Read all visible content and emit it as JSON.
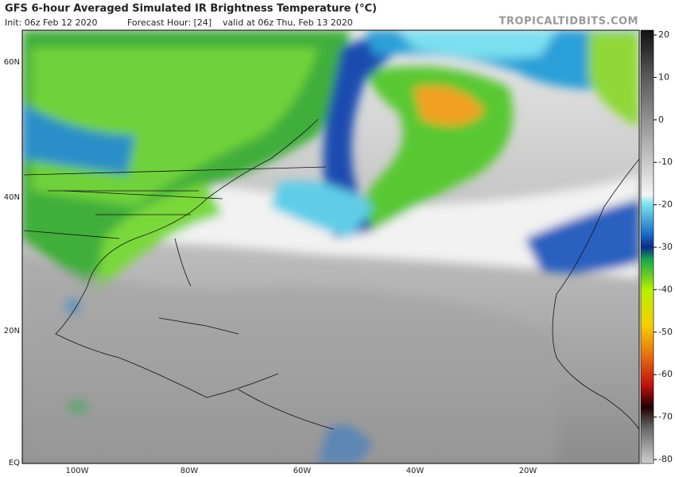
{
  "header": {
    "title": "GFS 6-hour Averaged Simulated IR Brightness Temperature (°C)",
    "init": "Init: 06z Feb 12 2020",
    "forecast": "Forecast Hour: [24]",
    "valid": "valid at 06z Thu, Feb 13 2020",
    "watermark": "TROPICALTIDBITS.COM"
  },
  "map": {
    "lat_labels": [
      "60N",
      "40N",
      "20N",
      "EQ"
    ],
    "lon_labels": [
      "100W",
      "80W",
      "60W",
      "40W",
      "20W"
    ]
  },
  "colorbar": {
    "lim": [
      -80,
      20
    ],
    "ticks": [
      20,
      10,
      0,
      -10,
      -20,
      -30,
      -40,
      -50,
      -60,
      -70,
      -80
    ]
  }
}
